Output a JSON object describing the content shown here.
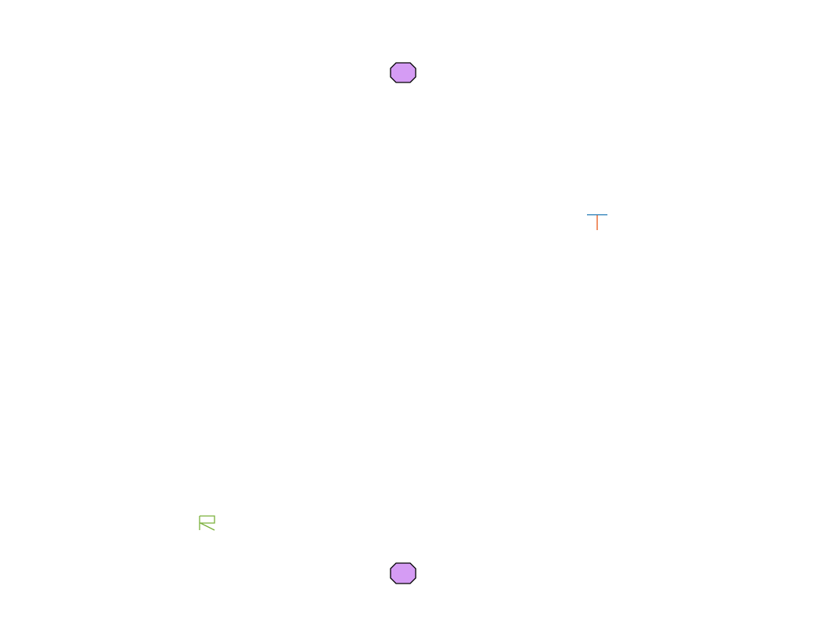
{
  "scene": {
    "background": "#ffffff",
    "colors": {
      "node_fill": "#d59cf4",
      "node_stroke": "#000000",
      "t_top_bar": "#1f77b4",
      "t_stem": "#e8591a",
      "flag_stroke": "#7ab03a"
    },
    "objects": [
      {
        "name": "octagon-node-top",
        "shape": "octagon"
      },
      {
        "name": "t-glyph-icon",
        "shape": "t-bar"
      },
      {
        "name": "flag-glyph-icon",
        "shape": "flag"
      },
      {
        "name": "octagon-node-bottom",
        "shape": "octagon"
      }
    ]
  }
}
